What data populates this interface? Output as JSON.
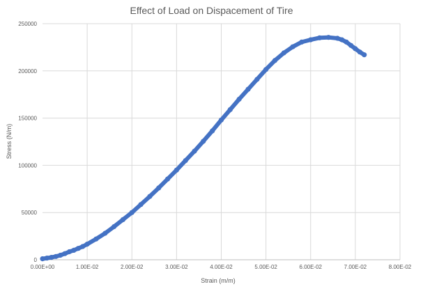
{
  "chart_data": {
    "type": "scatter",
    "title": "Effect of Load on Dispacement of Tire",
    "xlabel": "Strain (m/m)",
    "ylabel": "Stress (N/m)",
    "xlim": [
      0,
      0.08
    ],
    "ylim": [
      0,
      250000
    ],
    "x_tick_labels": [
      "0.00E+00",
      "1.00E-02",
      "2.00E-02",
      "3.00E-02",
      "4.00E-02",
      "5.00E-02",
      "6.00E-02",
      "7.00E-02",
      "8.00E-02"
    ],
    "y_tick_labels": [
      "0",
      "50000",
      "100000",
      "150000",
      "200000",
      "250000"
    ],
    "grid": true,
    "legend": "none",
    "marker_color": "#4472c4",
    "series": [
      {
        "x": [
          0.0,
          0.001,
          0.002,
          0.003,
          0.004,
          0.005,
          0.006,
          0.007,
          0.008,
          0.009,
          0.01,
          0.012,
          0.014,
          0.016,
          0.018,
          0.02,
          0.022,
          0.024,
          0.026,
          0.028,
          0.03,
          0.032,
          0.034,
          0.036,
          0.038,
          0.04,
          0.042,
          0.044,
          0.046,
          0.048,
          0.05,
          0.052,
          0.054,
          0.056,
          0.058,
          0.06,
          0.062,
          0.064,
          0.066,
          0.067,
          0.068,
          0.069,
          0.07,
          0.071,
          0.072
        ],
        "y": [
          1000,
          1800,
          2500,
          3500,
          4800,
          6500,
          8500,
          10000,
          12000,
          14000,
          16500,
          22000,
          28000,
          35000,
          42500,
          50000,
          58500,
          67000,
          76000,
          85500,
          95000,
          105000,
          115000,
          125500,
          136500,
          148000,
          159000,
          170000,
          180500,
          191000,
          201500,
          211000,
          219000,
          225500,
          230500,
          233000,
          235000,
          235500,
          234500,
          233000,
          230500,
          227000,
          223500,
          220000,
          217000
        ]
      }
    ]
  }
}
